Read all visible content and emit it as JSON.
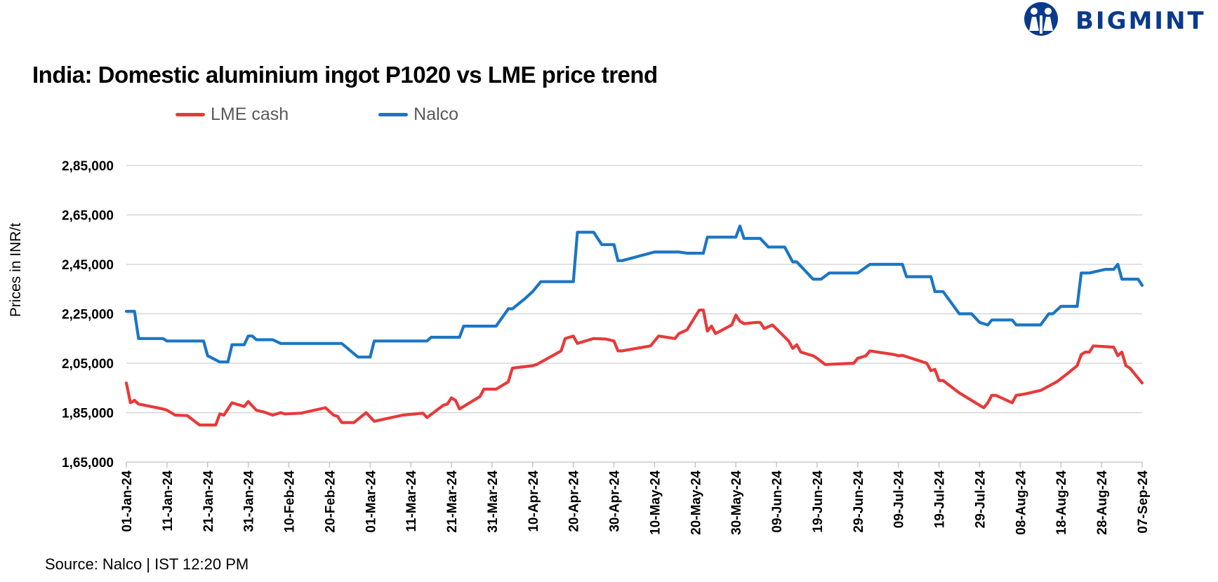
{
  "brand": {
    "name": "BIGMINT",
    "logo_icon": "people-globe-icon",
    "color": "#0b3a8c"
  },
  "title": "India: Domestic aluminium ingot P1020 vs LME price trend",
  "source": "Source: Nalco | IST 12:20 PM",
  "chart_data": {
    "type": "line",
    "title": "India: Domestic aluminium ingot P1020 vs LME price trend",
    "ylabel": "Prices in INR/t",
    "xlabel": "",
    "ylim": [
      165000,
      285000
    ],
    "y_ticks": [
      165000,
      185000,
      205000,
      225000,
      245000,
      265000,
      285000
    ],
    "y_tick_labels": [
      "1,65,000",
      "1,85,000",
      "2,05,000",
      "2,25,000",
      "2,45,000",
      "2,65,000",
      "2,85,000"
    ],
    "x_range": [
      "2024-01-01",
      "2024-09-07"
    ],
    "x_ticks": [
      "2024-01-01",
      "2024-01-11",
      "2024-01-21",
      "2024-01-31",
      "2024-02-10",
      "2024-02-20",
      "2024-03-01",
      "2024-03-11",
      "2024-03-21",
      "2024-03-31",
      "2024-04-10",
      "2024-04-20",
      "2024-04-30",
      "2024-05-10",
      "2024-05-20",
      "2024-05-30",
      "2024-06-09",
      "2024-06-19",
      "2024-06-29",
      "2024-07-09",
      "2024-07-19",
      "2024-07-29",
      "2024-08-08",
      "2024-08-18",
      "2024-08-28",
      "2024-09-07"
    ],
    "x_tick_labels": [
      "01-Jan-24",
      "11-Jan-24",
      "21-Jan-24",
      "31-Jan-24",
      "10-Feb-24",
      "20-Feb-24",
      "01-Mar-24",
      "11-Mar-24",
      "21-Mar-24",
      "31-Mar-24",
      "10-Apr-24",
      "20-Apr-24",
      "30-Apr-24",
      "10-May-24",
      "20-May-24",
      "30-May-24",
      "09-Jun-24",
      "19-Jun-24",
      "29-Jun-24",
      "09-Jul-24",
      "19-Jul-24",
      "29-Jul-24",
      "08-Aug-24",
      "18-Aug-24",
      "28-Aug-24",
      "07-Sep-24"
    ],
    "grid": "horizontal",
    "legend": "top-left",
    "series": [
      {
        "name": "LME cash",
        "color": "#e8393a",
        "points": [
          [
            "2024-01-01",
            197000
          ],
          [
            "2024-01-02",
            189000
          ],
          [
            "2024-01-03",
            190000
          ],
          [
            "2024-01-04",
            188500
          ],
          [
            "2024-01-10",
            186500
          ],
          [
            "2024-01-11",
            186000
          ],
          [
            "2024-01-13",
            184000
          ],
          [
            "2024-01-16",
            183800
          ],
          [
            "2024-01-19",
            180000
          ],
          [
            "2024-01-23",
            180000
          ],
          [
            "2024-01-24",
            184500
          ],
          [
            "2024-01-25",
            184000
          ],
          [
            "2024-01-27",
            189000
          ],
          [
            "2024-01-30",
            187500
          ],
          [
            "2024-01-31",
            189500
          ],
          [
            "2024-02-02",
            186000
          ],
          [
            "2024-02-04",
            185200
          ],
          [
            "2024-02-06",
            184000
          ],
          [
            "2024-02-08",
            185000
          ],
          [
            "2024-02-09",
            184500
          ],
          [
            "2024-02-13",
            184800
          ],
          [
            "2024-02-19",
            187000
          ],
          [
            "2024-02-21",
            184000
          ],
          [
            "2024-02-22",
            183500
          ],
          [
            "2024-02-23",
            181000
          ],
          [
            "2024-02-26",
            181000
          ],
          [
            "2024-02-29",
            185000
          ],
          [
            "2024-03-02",
            181500
          ],
          [
            "2024-03-09",
            184000
          ],
          [
            "2024-03-14",
            184800
          ],
          [
            "2024-03-15",
            183000
          ],
          [
            "2024-03-19",
            188000
          ],
          [
            "2024-03-20",
            188500
          ],
          [
            "2024-03-21",
            191000
          ],
          [
            "2024-03-22",
            190000
          ],
          [
            "2024-03-23",
            186500
          ],
          [
            "2024-03-28",
            191500
          ],
          [
            "2024-03-29",
            194500
          ],
          [
            "2024-04-01",
            194500
          ],
          [
            "2024-04-04",
            197500
          ],
          [
            "2024-04-05",
            203000
          ],
          [
            "2024-04-10",
            204000
          ],
          [
            "2024-04-11",
            204500
          ],
          [
            "2024-04-17",
            210000
          ],
          [
            "2024-04-18",
            215000
          ],
          [
            "2024-04-20",
            216000
          ],
          [
            "2024-04-21",
            213000
          ],
          [
            "2024-04-25",
            215000
          ],
          [
            "2024-04-28",
            214800
          ],
          [
            "2024-04-30",
            214000
          ],
          [
            "2024-05-01",
            210000
          ],
          [
            "2024-05-02",
            210000
          ],
          [
            "2024-05-09",
            212000
          ],
          [
            "2024-05-11",
            216000
          ],
          [
            "2024-05-15",
            215000
          ],
          [
            "2024-05-16",
            217000
          ],
          [
            "2024-05-18",
            218500
          ],
          [
            "2024-05-21",
            226500
          ],
          [
            "2024-05-22",
            226500
          ],
          [
            "2024-05-23",
            218000
          ],
          [
            "2024-05-24",
            220000
          ],
          [
            "2024-05-25",
            217000
          ],
          [
            "2024-05-29",
            220500
          ],
          [
            "2024-05-30",
            224500
          ],
          [
            "2024-05-31",
            222000
          ],
          [
            "2024-06-01",
            221000
          ],
          [
            "2024-06-04",
            221500
          ],
          [
            "2024-06-05",
            221500
          ],
          [
            "2024-06-06",
            219000
          ],
          [
            "2024-06-08",
            220500
          ],
          [
            "2024-06-12",
            214000
          ],
          [
            "2024-06-13",
            211000
          ],
          [
            "2024-06-14",
            212500
          ],
          [
            "2024-06-15",
            209500
          ],
          [
            "2024-06-18",
            208000
          ],
          [
            "2024-06-19",
            207000
          ],
          [
            "2024-06-21",
            204500
          ],
          [
            "2024-06-28",
            205000
          ],
          [
            "2024-06-29",
            207000
          ],
          [
            "2024-07-01",
            208000
          ],
          [
            "2024-07-02",
            210000
          ],
          [
            "2024-07-08",
            208500
          ],
          [
            "2024-07-09",
            208000
          ],
          [
            "2024-07-10",
            208200
          ],
          [
            "2024-07-16",
            205000
          ],
          [
            "2024-07-17",
            202000
          ],
          [
            "2024-07-18",
            202500
          ],
          [
            "2024-07-19",
            198000
          ],
          [
            "2024-07-20",
            198000
          ],
          [
            "2024-07-24",
            193000
          ],
          [
            "2024-07-30",
            187000
          ],
          [
            "2024-07-31",
            189000
          ],
          [
            "2024-08-01",
            192000
          ],
          [
            "2024-08-02",
            192000
          ],
          [
            "2024-08-06",
            189000
          ],
          [
            "2024-08-07",
            192000
          ],
          [
            "2024-08-09",
            192500
          ],
          [
            "2024-08-13",
            194000
          ],
          [
            "2024-08-17",
            197500
          ],
          [
            "2024-08-19",
            200000
          ],
          [
            "2024-08-22",
            204000
          ],
          [
            "2024-08-23",
            208500
          ],
          [
            "2024-08-24",
            209500
          ],
          [
            "2024-08-25",
            209500
          ],
          [
            "2024-08-26",
            212000
          ],
          [
            "2024-08-31",
            211500
          ],
          [
            "2024-09-01",
            208000
          ],
          [
            "2024-09-02",
            209500
          ],
          [
            "2024-09-03",
            204000
          ],
          [
            "2024-09-04",
            203000
          ],
          [
            "2024-09-05",
            201000
          ],
          [
            "2024-09-07",
            197000
          ]
        ]
      },
      {
        "name": "Nalco",
        "color": "#1b76c4",
        "points": [
          [
            "2024-01-01",
            226000
          ],
          [
            "2024-01-03",
            226000
          ],
          [
            "2024-01-04",
            215000
          ],
          [
            "2024-01-10",
            215000
          ],
          [
            "2024-01-11",
            214000
          ],
          [
            "2024-01-20",
            214000
          ],
          [
            "2024-01-21",
            208000
          ],
          [
            "2024-01-24",
            205500
          ],
          [
            "2024-01-26",
            205500
          ],
          [
            "2024-01-27",
            212500
          ],
          [
            "2024-01-30",
            212500
          ],
          [
            "2024-01-31",
            216000
          ],
          [
            "2024-02-01",
            216000
          ],
          [
            "2024-02-02",
            214500
          ],
          [
            "2024-02-06",
            214500
          ],
          [
            "2024-02-08",
            213000
          ],
          [
            "2024-02-23",
            213000
          ],
          [
            "2024-02-27",
            207500
          ],
          [
            "2024-03-01",
            207500
          ],
          [
            "2024-03-02",
            214000
          ],
          [
            "2024-03-15",
            214000
          ],
          [
            "2024-03-16",
            215500
          ],
          [
            "2024-03-23",
            215500
          ],
          [
            "2024-03-24",
            220000
          ],
          [
            "2024-04-01",
            220000
          ],
          [
            "2024-04-04",
            227000
          ],
          [
            "2024-04-05",
            227000
          ],
          [
            "2024-04-08",
            231000
          ],
          [
            "2024-04-10",
            234000
          ],
          [
            "2024-04-12",
            238000
          ],
          [
            "2024-04-20",
            238000
          ],
          [
            "2024-04-21",
            258000
          ],
          [
            "2024-04-25",
            258000
          ],
          [
            "2024-04-27",
            253000
          ],
          [
            "2024-04-30",
            253000
          ],
          [
            "2024-05-01",
            246500
          ],
          [
            "2024-05-02",
            246500
          ],
          [
            "2024-05-10",
            250000
          ],
          [
            "2024-05-16",
            250000
          ],
          [
            "2024-05-18",
            249500
          ],
          [
            "2024-05-22",
            249500
          ],
          [
            "2024-05-23",
            256000
          ],
          [
            "2024-05-30",
            256000
          ],
          [
            "2024-05-31",
            260500
          ],
          [
            "2024-06-01",
            255500
          ],
          [
            "2024-06-05",
            255500
          ],
          [
            "2024-06-07",
            252000
          ],
          [
            "2024-06-11",
            252000
          ],
          [
            "2024-06-13",
            246000
          ],
          [
            "2024-06-14",
            246000
          ],
          [
            "2024-06-18",
            239000
          ],
          [
            "2024-06-20",
            239000
          ],
          [
            "2024-06-22",
            241500
          ],
          [
            "2024-06-29",
            241500
          ],
          [
            "2024-07-02",
            245000
          ],
          [
            "2024-07-10",
            245000
          ],
          [
            "2024-07-11",
            240000
          ],
          [
            "2024-07-17",
            240000
          ],
          [
            "2024-07-18",
            234000
          ],
          [
            "2024-07-20",
            234000
          ],
          [
            "2024-07-24",
            225000
          ],
          [
            "2024-07-27",
            225000
          ],
          [
            "2024-07-29",
            221500
          ],
          [
            "2024-07-31",
            220500
          ],
          [
            "2024-08-01",
            222500
          ],
          [
            "2024-08-06",
            222500
          ],
          [
            "2024-08-07",
            220500
          ],
          [
            "2024-08-13",
            220500
          ],
          [
            "2024-08-15",
            225000
          ],
          [
            "2024-08-16",
            225000
          ],
          [
            "2024-08-18",
            228000
          ],
          [
            "2024-08-22",
            228000
          ],
          [
            "2024-08-23",
            241500
          ],
          [
            "2024-08-25",
            241500
          ],
          [
            "2024-08-29",
            243000
          ],
          [
            "2024-08-31",
            243000
          ],
          [
            "2024-09-01",
            245000
          ],
          [
            "2024-09-02",
            239000
          ],
          [
            "2024-09-06",
            239000
          ],
          [
            "2024-09-07",
            236500
          ]
        ]
      }
    ]
  }
}
